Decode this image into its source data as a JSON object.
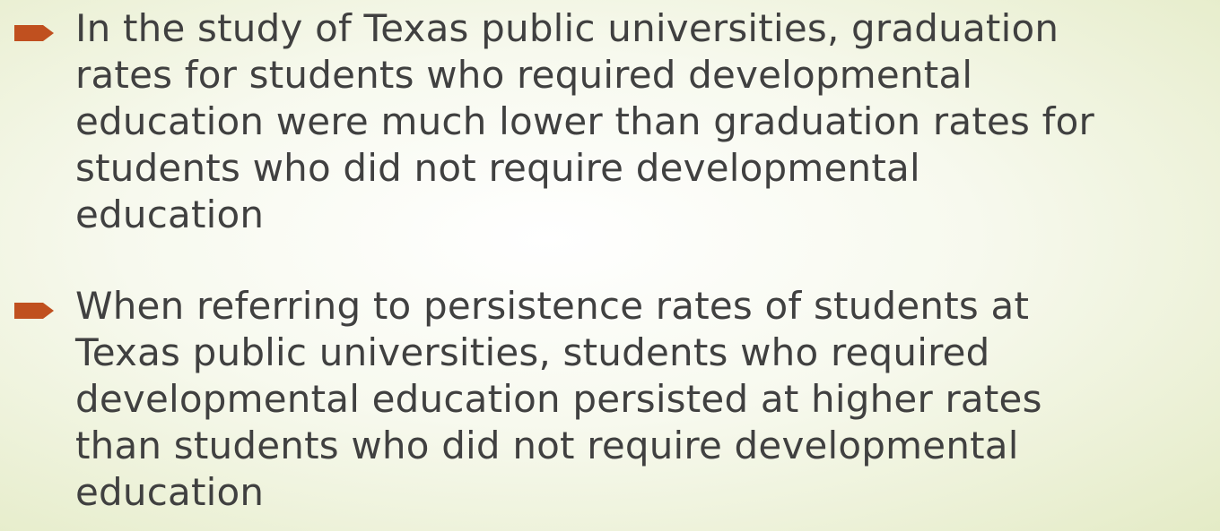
{
  "bullets": [
    {
      "lines": [
        "In the study of Texas public universities, graduation",
        "rates for students who required developmental",
        "education were much lower than graduation rates for",
        "students who did not require developmental",
        "education"
      ]
    },
    {
      "lines": [
        "When referring to persistence rates of students at",
        "Texas public universities, students who required",
        "developmental education persisted at higher rates",
        "than students who did not require developmental",
        "education"
      ]
    }
  ]
}
